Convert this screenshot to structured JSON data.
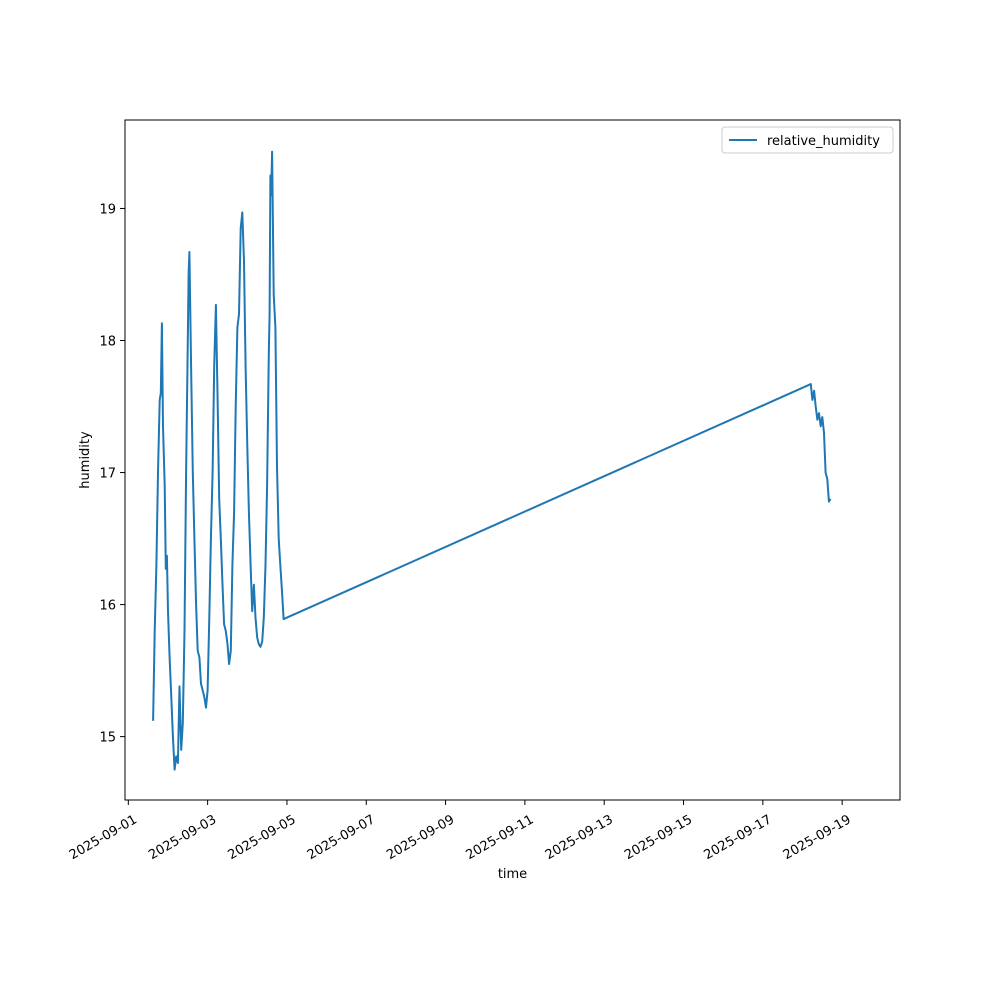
{
  "chart_data": {
    "type": "line",
    "title": "",
    "xlabel": "time",
    "ylabel": "humidity",
    "x_type": "date",
    "xlim": [
      "2025-08-31T22:00",
      "2025-09-20T11:00"
    ],
    "ylim": [
      14.52,
      19.67
    ],
    "x_ticks": [
      "2025-09-01",
      "2025-09-03",
      "2025-09-05",
      "2025-09-07",
      "2025-09-09",
      "2025-09-11",
      "2025-09-13",
      "2025-09-15",
      "2025-09-17",
      "2025-09-19"
    ],
    "y_ticks": [
      15,
      16,
      17,
      18,
      19
    ],
    "grid": false,
    "legend": {
      "placement": "top-right",
      "entries": [
        "relative_humidity"
      ]
    },
    "colors": {
      "series": "#1f77b4"
    },
    "series": [
      {
        "name": "relative_humidity",
        "points": [
          [
            "2025-09-01T15:00",
            15.12
          ],
          [
            "2025-09-01T16:00",
            15.8
          ],
          [
            "2025-09-01T17:00",
            16.3
          ],
          [
            "2025-09-01T18:00",
            17.0
          ],
          [
            "2025-09-01T19:00",
            17.55
          ],
          [
            "2025-09-01T19:40",
            17.6
          ],
          [
            "2025-09-01T20:20",
            18.13
          ],
          [
            "2025-09-01T21:00",
            17.35
          ],
          [
            "2025-09-01T22:00",
            16.9
          ],
          [
            "2025-09-01T22:40",
            16.27
          ],
          [
            "2025-09-01T23:20",
            16.37
          ],
          [
            "2025-09-02T00:00",
            15.95
          ],
          [
            "2025-09-02T01:00",
            15.6
          ],
          [
            "2025-09-02T02:00",
            15.3
          ],
          [
            "2025-09-02T03:00",
            15.0
          ],
          [
            "2025-09-02T04:00",
            14.75
          ],
          [
            "2025-09-02T05:00",
            14.85
          ],
          [
            "2025-09-02T06:00",
            14.8
          ],
          [
            "2025-09-02T07:00",
            15.38
          ],
          [
            "2025-09-02T08:00",
            14.9
          ],
          [
            "2025-09-02T09:00",
            15.1
          ],
          [
            "2025-09-02T10:00",
            15.8
          ],
          [
            "2025-09-02T11:00",
            17.0
          ],
          [
            "2025-09-02T12:00",
            18.0
          ],
          [
            "2025-09-02T12:30",
            18.5
          ],
          [
            "2025-09-02T13:00",
            18.67
          ],
          [
            "2025-09-02T14:00",
            17.8
          ],
          [
            "2025-09-02T15:00",
            17.0
          ],
          [
            "2025-09-02T16:00",
            16.5
          ],
          [
            "2025-09-02T17:00",
            16.0
          ],
          [
            "2025-09-02T18:00",
            15.65
          ],
          [
            "2025-09-02T19:00",
            15.6
          ],
          [
            "2025-09-02T20:00",
            15.4
          ],
          [
            "2025-09-02T21:00",
            15.35
          ],
          [
            "2025-09-02T22:00",
            15.3
          ],
          [
            "2025-09-02T23:00",
            15.22
          ],
          [
            "2025-09-03T00:00",
            15.35
          ],
          [
            "2025-09-03T01:00",
            15.9
          ],
          [
            "2025-09-03T02:00",
            16.5
          ],
          [
            "2025-09-03T03:00",
            17.0
          ],
          [
            "2025-09-03T04:00",
            17.8
          ],
          [
            "2025-09-03T05:00",
            18.27
          ],
          [
            "2025-09-03T06:00",
            17.6
          ],
          [
            "2025-09-03T07:00",
            16.8
          ],
          [
            "2025-09-03T08:00",
            16.5
          ],
          [
            "2025-09-03T09:00",
            16.15
          ],
          [
            "2025-09-03T10:00",
            15.85
          ],
          [
            "2025-09-03T11:00",
            15.8
          ],
          [
            "2025-09-03T12:00",
            15.7
          ],
          [
            "2025-09-03T13:00",
            15.55
          ],
          [
            "2025-09-03T14:00",
            15.65
          ],
          [
            "2025-09-03T15:00",
            16.3
          ],
          [
            "2025-09-03T16:00",
            16.7
          ],
          [
            "2025-09-03T17:00",
            17.5
          ],
          [
            "2025-09-03T18:00",
            18.1
          ],
          [
            "2025-09-03T19:00",
            18.2
          ],
          [
            "2025-09-03T20:00",
            18.85
          ],
          [
            "2025-09-03T21:00",
            18.97
          ],
          [
            "2025-09-03T22:00",
            18.6
          ],
          [
            "2025-09-03T23:00",
            17.8
          ],
          [
            "2025-09-04T00:00",
            17.2
          ],
          [
            "2025-09-04T01:00",
            16.7
          ],
          [
            "2025-09-04T02:00",
            16.3
          ],
          [
            "2025-09-04T03:00",
            15.95
          ],
          [
            "2025-09-04T04:00",
            16.15
          ],
          [
            "2025-09-04T05:00",
            15.9
          ],
          [
            "2025-09-04T06:00",
            15.75
          ],
          [
            "2025-09-04T07:00",
            15.7
          ],
          [
            "2025-09-04T08:00",
            15.68
          ],
          [
            "2025-09-04T09:00",
            15.72
          ],
          [
            "2025-09-04T10:00",
            15.9
          ],
          [
            "2025-09-04T11:00",
            16.3
          ],
          [
            "2025-09-04T12:00",
            16.9
          ],
          [
            "2025-09-04T13:00",
            17.9
          ],
          [
            "2025-09-04T13:30",
            18.2
          ],
          [
            "2025-09-04T14:00",
            19.25
          ],
          [
            "2025-09-04T14:30",
            19.1
          ],
          [
            "2025-09-04T15:00",
            19.43
          ],
          [
            "2025-09-04T16:00",
            18.35
          ],
          [
            "2025-09-04T17:00",
            18.1
          ],
          [
            "2025-09-04T18:00",
            17.05
          ],
          [
            "2025-09-04T19:00",
            16.5
          ],
          [
            "2025-09-04T20:00",
            16.3
          ],
          [
            "2025-09-04T21:00",
            16.1
          ],
          [
            "2025-09-04T22:00",
            15.89
          ],
          [
            "2025-09-18T05:00",
            17.67
          ],
          [
            "2025-09-18T06:00",
            17.55
          ],
          [
            "2025-09-18T07:00",
            17.62
          ],
          [
            "2025-09-18T08:00",
            17.5
          ],
          [
            "2025-09-18T09:00",
            17.4
          ],
          [
            "2025-09-18T10:00",
            17.45
          ],
          [
            "2025-09-18T11:00",
            17.35
          ],
          [
            "2025-09-18T12:00",
            17.42
          ],
          [
            "2025-09-18T13:00",
            17.3
          ],
          [
            "2025-09-18T14:00",
            17.0
          ],
          [
            "2025-09-18T15:00",
            16.95
          ],
          [
            "2025-09-18T16:00",
            16.78
          ],
          [
            "2025-09-18T17:00",
            16.8
          ]
        ]
      }
    ]
  }
}
